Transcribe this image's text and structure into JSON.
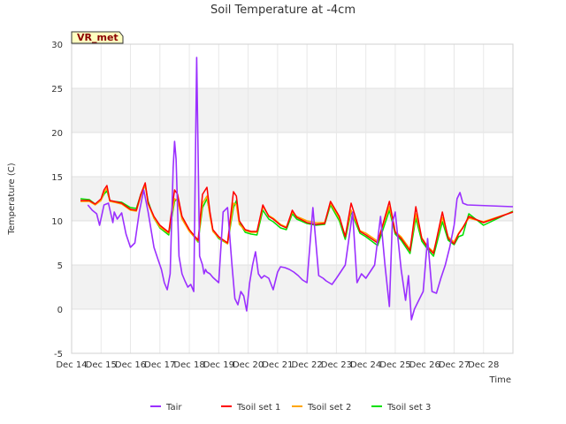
{
  "chart_data": {
    "type": "line",
    "title": "Soil Temperature at -4cm",
    "xlabel": "Time",
    "ylabel": "Temperature (C)",
    "badge": "VR_met",
    "x_ticks": [
      "Dec 14",
      "Dec 15",
      "Dec 16",
      "Dec 17",
      "Dec 18",
      "Dec 19",
      "Dec 20",
      "Dec 21",
      "Dec 22",
      "Dec 23",
      "Dec 24",
      "Dec 25",
      "Dec 26",
      "Dec 27",
      "Dec 28"
    ],
    "xlim": [
      0,
      15
    ],
    "ylim": [
      -5,
      30
    ],
    "y_ticks": [
      -5,
      0,
      5,
      10,
      15,
      20,
      25,
      30
    ],
    "grid": true,
    "legend_position": "bottom",
    "series": [
      {
        "name": "Tair",
        "color": "#9b30ff",
        "x": [
          0.55,
          0.7,
          0.85,
          0.95,
          1.1,
          1.25,
          1.4,
          1.45,
          1.55,
          1.7,
          1.85,
          2.0,
          2.15,
          2.3,
          2.45,
          2.6,
          2.8,
          2.95,
          3.05,
          3.15,
          3.25,
          3.35,
          3.45,
          3.5,
          3.55,
          3.65,
          3.75,
          3.85,
          3.95,
          4.05,
          4.15,
          4.25,
          4.35,
          4.45,
          4.5,
          4.55,
          4.6,
          4.7,
          4.8,
          4.9,
          5.0,
          5.15,
          5.3,
          5.45,
          5.55,
          5.65,
          5.75,
          5.85,
          5.95,
          6.05,
          6.15,
          6.25,
          6.35,
          6.45,
          6.55,
          6.7,
          6.85,
          7.0,
          7.1,
          7.25,
          7.4,
          7.55,
          7.7,
          7.85,
          8.0,
          8.2,
          8.4,
          8.55,
          8.65,
          8.75,
          8.85,
          9.0,
          9.3,
          9.55,
          9.7,
          9.85,
          10.0,
          10.3,
          10.5,
          10.65,
          10.8,
          10.9,
          11.0,
          11.2,
          11.35,
          11.45,
          11.55,
          11.65,
          11.8,
          11.95,
          12.1,
          12.25,
          12.4,
          12.55,
          12.7,
          12.85,
          13.0,
          13.1,
          13.2,
          13.3,
          13.45,
          15.0
        ],
        "y": [
          11.8,
          11.2,
          10.8,
          9.5,
          11.8,
          12.0,
          9.8,
          11.0,
          10.2,
          10.9,
          8.5,
          7.0,
          7.5,
          11.0,
          13.5,
          11.0,
          7.0,
          5.5,
          4.5,
          3.0,
          2.2,
          4.0,
          16.0,
          19.0,
          17.0,
          6.0,
          4.0,
          3.2,
          2.5,
          2.8,
          2.0,
          28.5,
          6.0,
          5.0,
          4.0,
          4.5,
          4.2,
          4.0,
          3.6,
          3.3,
          3.0,
          11.0,
          11.5,
          5.0,
          1.2,
          0.5,
          2.0,
          1.5,
          -0.2,
          3.0,
          5.0,
          6.5,
          4.0,
          3.5,
          3.8,
          3.5,
          2.2,
          4.2,
          4.8,
          4.7,
          4.5,
          4.2,
          3.8,
          3.3,
          3.0,
          11.5,
          3.8,
          3.5,
          3.2,
          3.0,
          2.8,
          3.5,
          5.0,
          11.0,
          3.0,
          4.0,
          3.5,
          5.0,
          10.5,
          5.0,
          0.3,
          9.8,
          11.0,
          4.5,
          1.0,
          3.8,
          -1.2,
          0.0,
          1.0,
          2.0,
          8.0,
          2.0,
          1.8,
          3.5,
          5.0,
          7.0,
          9.5,
          12.5,
          13.2,
          12.0,
          11.8,
          11.6
        ]
      },
      {
        "name": "Tsoil set 1",
        "color": "#ff0000",
        "x": [
          0.3,
          0.6,
          0.8,
          1.0,
          1.1,
          1.2,
          1.3,
          1.45,
          1.7,
          2.0,
          2.2,
          2.35,
          2.5,
          2.6,
          2.8,
          3.0,
          3.3,
          3.5,
          3.6,
          3.75,
          4.0,
          4.3,
          4.45,
          4.6,
          4.7,
          4.8,
          5.0,
          5.3,
          5.5,
          5.6,
          5.7,
          5.9,
          6.1,
          6.3,
          6.5,
          6.7,
          6.85,
          7.1,
          7.3,
          7.5,
          7.65,
          8.0,
          8.3,
          8.6,
          8.8,
          9.1,
          9.3,
          9.5,
          9.8,
          10.0,
          10.4,
          10.8,
          11.0,
          11.2,
          11.5,
          11.7,
          11.9,
          12.1,
          12.3,
          12.6,
          12.8,
          13.0,
          13.15,
          13.3,
          13.5,
          14.0,
          15.0
        ],
        "y": [
          12.3,
          12.3,
          11.9,
          12.5,
          13.5,
          14.0,
          12.3,
          12.2,
          12.0,
          11.3,
          11.2,
          13.0,
          14.3,
          12.0,
          10.5,
          9.5,
          8.7,
          13.5,
          13.0,
          10.5,
          9.0,
          7.8,
          13.0,
          13.8,
          11.0,
          9.0,
          8.2,
          7.5,
          13.3,
          12.8,
          10.0,
          9.0,
          8.8,
          8.8,
          11.8,
          10.5,
          10.2,
          9.5,
          9.2,
          11.2,
          10.4,
          9.8,
          9.6,
          9.7,
          12.2,
          10.5,
          8.2,
          12.0,
          8.8,
          8.4,
          7.5,
          12.2,
          8.7,
          8.0,
          6.6,
          11.6,
          8.0,
          7.0,
          6.3,
          11.0,
          8.0,
          7.4,
          8.5,
          9.2,
          10.5,
          9.8,
          11.0
        ]
      },
      {
        "name": "Tsoil set 2",
        "color": "#ffa500",
        "x": [
          0.3,
          0.6,
          0.8,
          1.0,
          1.1,
          1.2,
          1.3,
          1.45,
          1.7,
          2.0,
          2.2,
          2.35,
          2.5,
          2.6,
          2.8,
          3.0,
          3.3,
          3.5,
          3.6,
          3.75,
          4.0,
          4.3,
          4.45,
          4.6,
          4.7,
          4.8,
          5.0,
          5.3,
          5.5,
          5.6,
          5.7,
          5.9,
          6.1,
          6.3,
          6.5,
          6.7,
          6.85,
          7.1,
          7.3,
          7.5,
          7.65,
          8.0,
          8.3,
          8.6,
          8.8,
          9.1,
          9.3,
          9.5,
          9.8,
          10.0,
          10.4,
          10.8,
          11.0,
          11.2,
          11.5,
          11.7,
          11.9,
          12.1,
          12.3,
          12.6,
          12.8,
          13.0,
          13.15,
          13.3,
          13.5,
          14.0,
          15.0
        ],
        "y": [
          12.2,
          12.2,
          11.8,
          12.3,
          13.2,
          13.7,
          12.2,
          12.1,
          11.9,
          11.2,
          11.1,
          12.8,
          14.1,
          11.9,
          10.3,
          9.3,
          8.6,
          12.5,
          12.3,
          10.2,
          8.8,
          7.7,
          12.0,
          12.8,
          10.5,
          8.8,
          8.1,
          7.4,
          12.0,
          11.8,
          9.6,
          8.9,
          8.7,
          8.7,
          11.6,
          10.6,
          10.3,
          9.6,
          9.3,
          11.0,
          10.5,
          10.0,
          9.8,
          9.8,
          12.0,
          10.3,
          8.3,
          11.2,
          8.9,
          8.6,
          7.7,
          11.6,
          8.8,
          8.2,
          6.8,
          10.8,
          8.1,
          7.1,
          6.5,
          10.4,
          8.2,
          7.6,
          8.6,
          9.3,
          10.3,
          9.9,
          11.0
        ]
      },
      {
        "name": "Tsoil set 3",
        "color": "#00e000",
        "x": [
          0.3,
          0.6,
          0.8,
          1.0,
          1.1,
          1.2,
          1.3,
          1.45,
          1.7,
          2.0,
          2.2,
          2.35,
          2.5,
          2.6,
          2.8,
          3.0,
          3.3,
          3.5,
          3.6,
          3.75,
          4.0,
          4.3,
          4.45,
          4.6,
          4.7,
          4.8,
          5.0,
          5.3,
          5.5,
          5.6,
          5.7,
          5.9,
          6.1,
          6.3,
          6.5,
          6.7,
          6.85,
          7.1,
          7.3,
          7.5,
          7.65,
          8.0,
          8.3,
          8.6,
          8.8,
          9.1,
          9.3,
          9.5,
          9.8,
          10.0,
          10.4,
          10.8,
          11.0,
          11.2,
          11.5,
          11.7,
          11.9,
          12.1,
          12.3,
          12.6,
          12.8,
          13.0,
          13.15,
          13.3,
          13.5,
          14.0,
          15.0
        ],
        "y": [
          12.5,
          12.4,
          11.9,
          12.4,
          13.0,
          13.4,
          12.3,
          12.2,
          12.1,
          11.5,
          11.4,
          13.0,
          14.0,
          12.2,
          10.3,
          9.2,
          8.4,
          12.2,
          12.5,
          10.4,
          8.9,
          7.6,
          11.5,
          12.5,
          10.8,
          8.9,
          8.0,
          7.4,
          11.5,
          12.3,
          9.8,
          8.7,
          8.5,
          8.4,
          11.2,
          10.2,
          9.9,
          9.2,
          9.0,
          10.8,
          10.2,
          9.7,
          9.5,
          9.6,
          11.8,
          10.0,
          7.9,
          11.0,
          8.6,
          8.2,
          7.2,
          11.2,
          8.5,
          7.8,
          6.3,
          10.3,
          7.7,
          6.8,
          6.0,
          9.9,
          7.8,
          7.3,
          8.2,
          8.4,
          10.8,
          9.5,
          11.1
        ]
      }
    ]
  }
}
